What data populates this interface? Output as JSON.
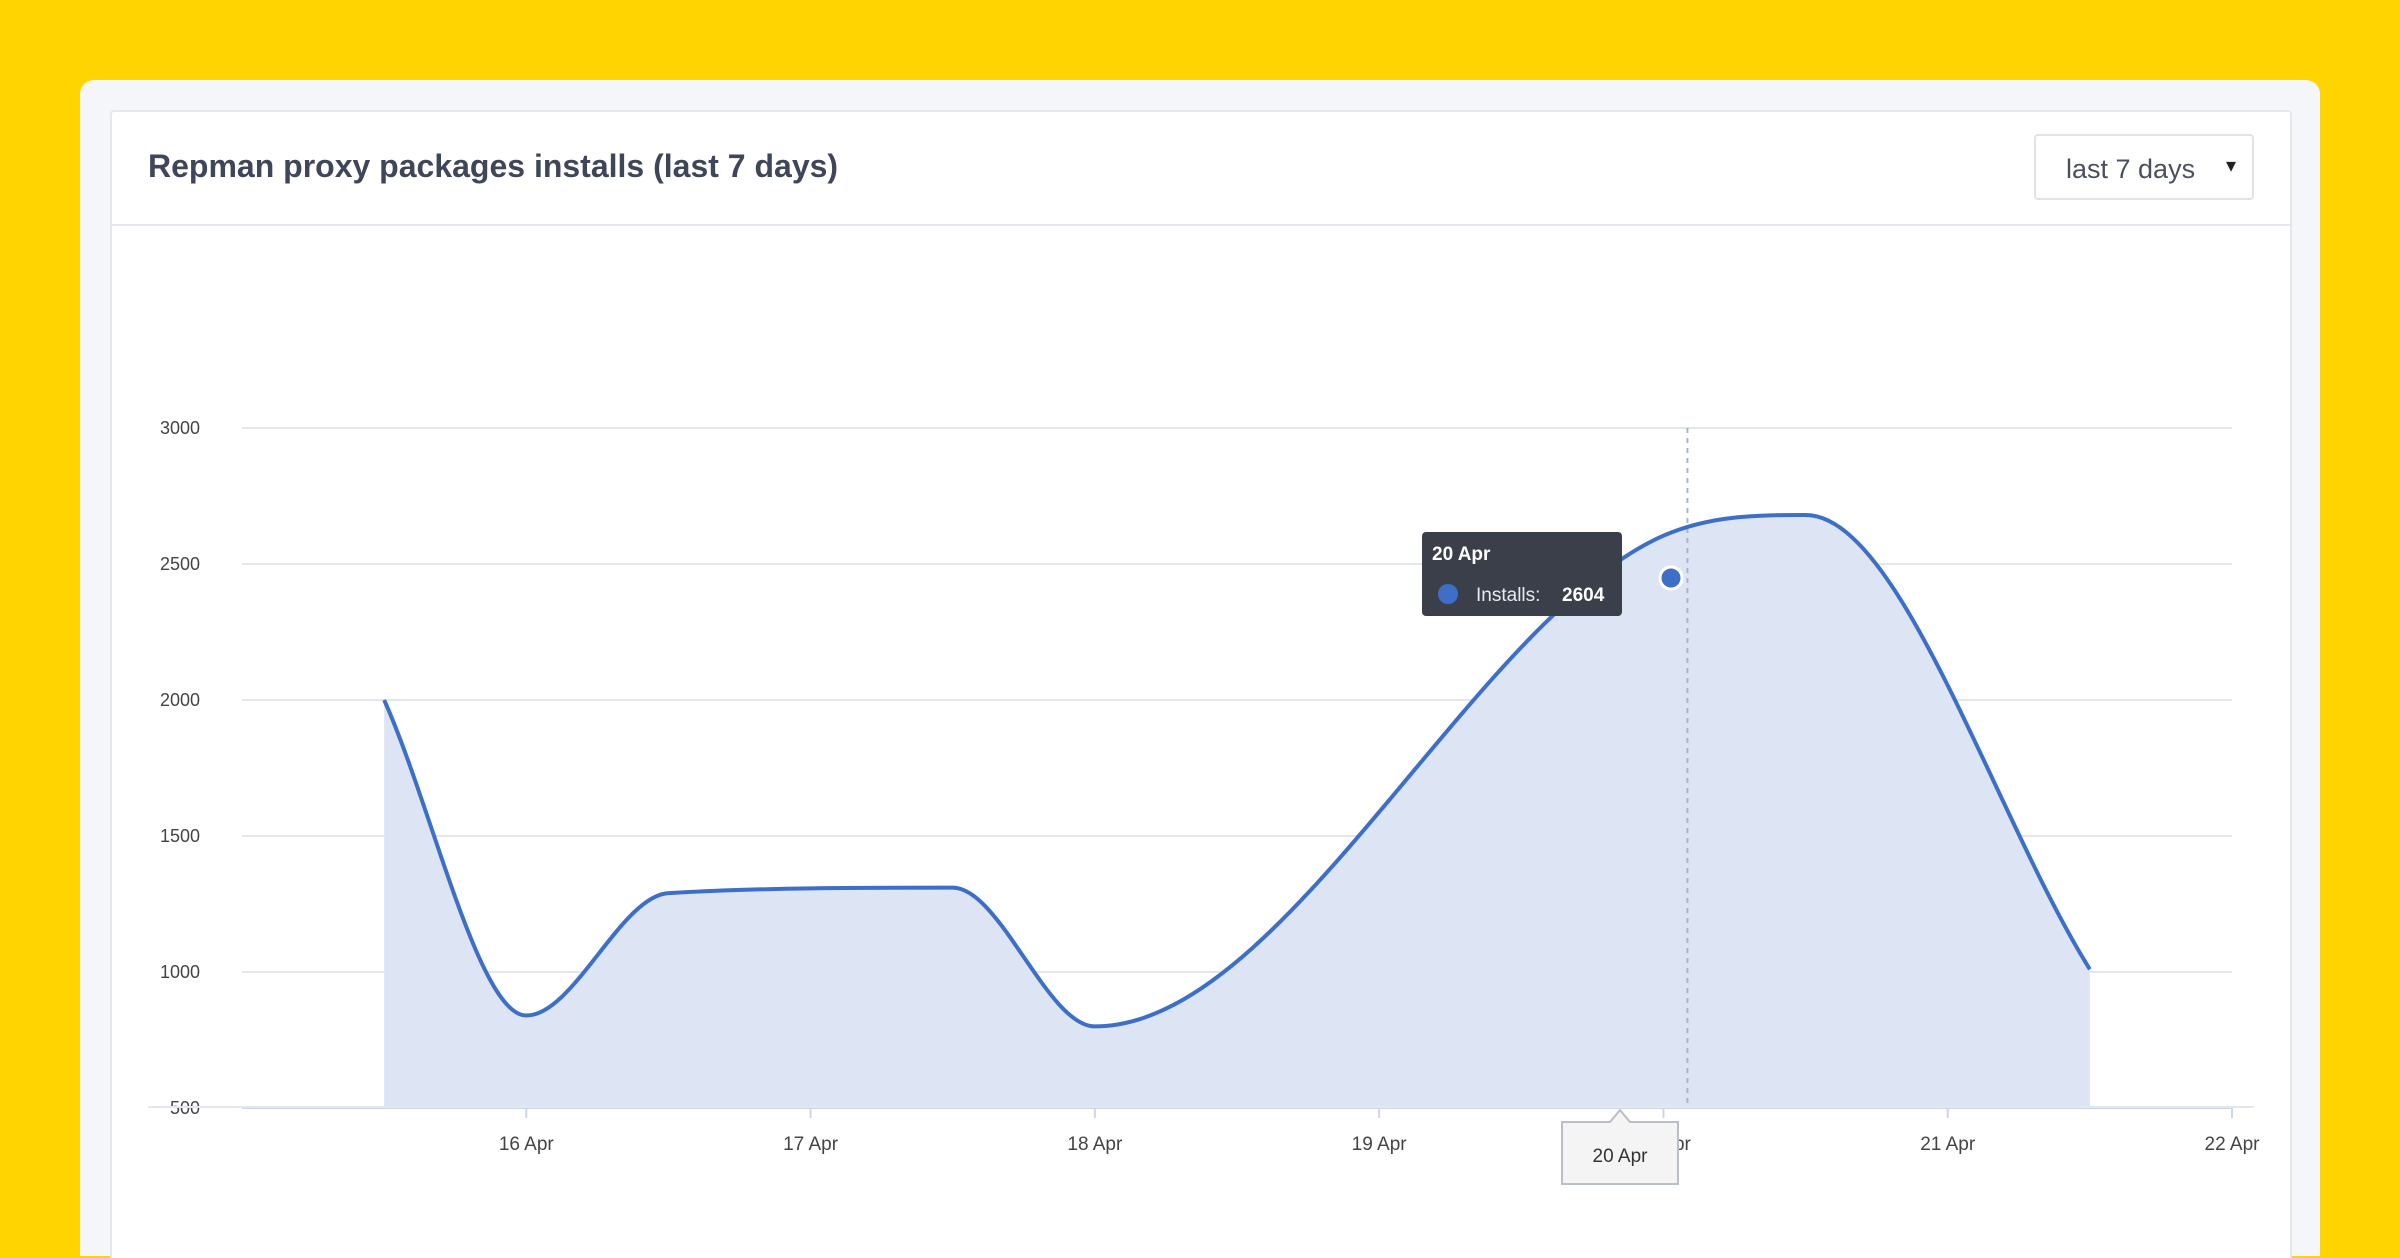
{
  "card": {
    "title": "Repman proxy packages installs (last 7 days)"
  },
  "range_select": {
    "value": "last 7 days",
    "caret": "▾"
  },
  "colors": {
    "background": "#FFD400",
    "line": "#3d6fc9",
    "area": "#dde5f5",
    "tooltip_bg": "#3b3f4a"
  },
  "tooltip": {
    "date": "20 Apr",
    "series_label": "Installs:",
    "value": "2604"
  },
  "crosshair_label": "20 Apr",
  "chart_data": {
    "type": "area",
    "y_ticks": [
      500,
      1000,
      1500,
      2000,
      2500,
      3000
    ],
    "ylim": [
      500,
      3000
    ],
    "x_ticks": [
      "16 Apr",
      "17 Apr",
      "18 Apr",
      "19 Apr",
      "20 Apr",
      "21 Apr",
      "22 Apr"
    ],
    "grid": true,
    "points": [
      {
        "x": "15 Apr 12:00",
        "y": 2000
      },
      {
        "x": "16 Apr 00:00",
        "y": 840
      },
      {
        "x": "16 Apr 12:00",
        "y": 1290
      },
      {
        "x": "17 Apr 12:00",
        "y": 1310
      },
      {
        "x": "18 Apr 00:00",
        "y": 800
      },
      {
        "x": "20 Apr 00:00",
        "y": 2604
      },
      {
        "x": "20 Apr 12:00",
        "y": 2680
      },
      {
        "x": "21 Apr 12:00",
        "y": 1010
      }
    ]
  }
}
